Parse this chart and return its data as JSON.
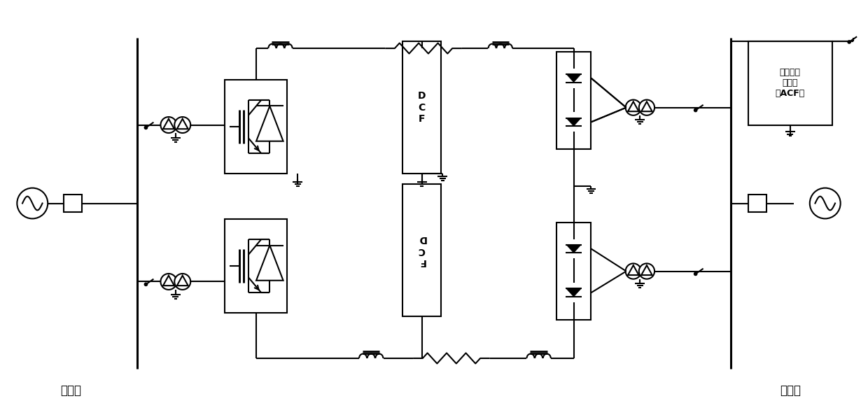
{
  "bg_color": "#ffffff",
  "line_color": "#000000",
  "lw": 1.5,
  "tlw": 2.2,
  "fig_width": 12.4,
  "fig_height": 5.83,
  "label_zhengliuzhan": "整流站",
  "label_nibianzhanzhan": "逆变站",
  "label_dcf": "D\nC\nF",
  "label_fcd": "F\nC\nD",
  "label_acf_box": "无功，滤\n波元件\n（ACF）"
}
